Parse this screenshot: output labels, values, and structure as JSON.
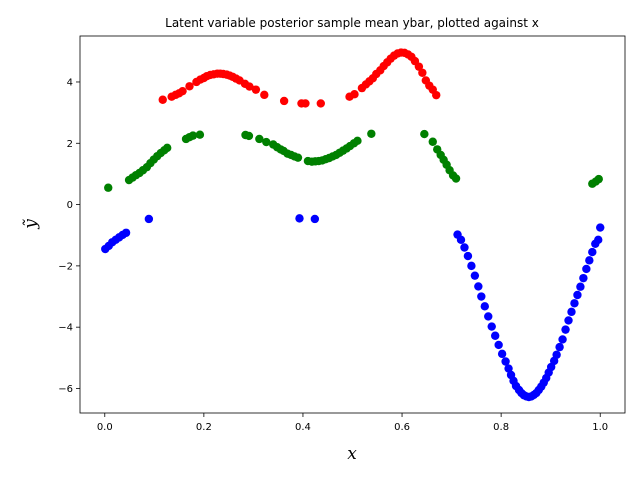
{
  "chart_data": {
    "type": "scatter",
    "title": "Latent variable posterior sample mean ybar, plotted against x",
    "xlabel": "x",
    "ylabel": "ỹ",
    "xlim": [
      -0.05,
      1.05
    ],
    "ylim": [
      -6.8,
      5.5
    ],
    "xticks": [
      0.0,
      0.2,
      0.4,
      0.6,
      0.8,
      1.0
    ],
    "xtick_labels": [
      "0.0",
      "0.2",
      "0.4",
      "0.6",
      "0.8",
      "1.0"
    ],
    "yticks": [
      -6,
      -4,
      -2,
      0,
      2,
      4
    ],
    "ytick_labels": [
      "−6",
      "−4",
      "−2",
      "0",
      "2",
      "4"
    ],
    "grid": false,
    "legend": "none",
    "series": [
      {
        "color": "#ff0000",
        "points": [
          [
            0.117,
            3.42
          ],
          [
            0.135,
            3.52
          ],
          [
            0.143,
            3.58
          ],
          [
            0.15,
            3.63
          ],
          [
            0.157,
            3.7
          ],
          [
            0.171,
            3.86
          ],
          [
            0.185,
            4.0
          ],
          [
            0.193,
            4.08
          ],
          [
            0.2,
            4.13
          ],
          [
            0.206,
            4.19
          ],
          [
            0.213,
            4.23
          ],
          [
            0.22,
            4.25
          ],
          [
            0.227,
            4.27
          ],
          [
            0.233,
            4.27
          ],
          [
            0.239,
            4.26
          ],
          [
            0.246,
            4.24
          ],
          [
            0.252,
            4.21
          ],
          [
            0.258,
            4.17
          ],
          [
            0.265,
            4.11
          ],
          [
            0.272,
            4.05
          ],
          [
            0.283,
            3.94
          ],
          [
            0.292,
            3.85
          ],
          [
            0.305,
            3.75
          ],
          [
            0.322,
            3.58
          ],
          [
            0.362,
            3.38
          ],
          [
            0.397,
            3.3
          ],
          [
            0.405,
            3.3
          ],
          [
            0.436,
            3.3
          ],
          [
            0.494,
            3.52
          ],
          [
            0.504,
            3.6
          ],
          [
            0.519,
            3.8
          ],
          [
            0.527,
            3.92
          ],
          [
            0.534,
            4.02
          ],
          [
            0.541,
            4.12
          ],
          [
            0.548,
            4.26
          ],
          [
            0.556,
            4.38
          ],
          [
            0.563,
            4.52
          ],
          [
            0.57,
            4.64
          ],
          [
            0.577,
            4.76
          ],
          [
            0.584,
            4.86
          ],
          [
            0.591,
            4.93
          ],
          [
            0.598,
            4.96
          ],
          [
            0.605,
            4.95
          ],
          [
            0.612,
            4.9
          ],
          [
            0.619,
            4.82
          ],
          [
            0.626,
            4.68
          ],
          [
            0.634,
            4.5
          ],
          [
            0.641,
            4.3
          ],
          [
            0.648,
            4.05
          ],
          [
            0.655,
            3.88
          ],
          [
            0.662,
            3.75
          ],
          [
            0.669,
            3.57
          ]
        ]
      },
      {
        "color": "#008000",
        "points": [
          [
            0.007,
            0.55
          ],
          [
            0.049,
            0.8
          ],
          [
            0.056,
            0.88
          ],
          [
            0.063,
            0.96
          ],
          [
            0.07,
            1.03
          ],
          [
            0.077,
            1.12
          ],
          [
            0.085,
            1.22
          ],
          [
            0.092,
            1.35
          ],
          [
            0.099,
            1.47
          ],
          [
            0.106,
            1.58
          ],
          [
            0.113,
            1.68
          ],
          [
            0.12,
            1.77
          ],
          [
            0.126,
            1.85
          ],
          [
            0.164,
            2.14
          ],
          [
            0.171,
            2.2
          ],
          [
            0.178,
            2.25
          ],
          [
            0.192,
            2.28
          ],
          [
            0.284,
            2.27
          ],
          [
            0.291,
            2.24
          ],
          [
            0.312,
            2.14
          ],
          [
            0.326,
            2.04
          ],
          [
            0.34,
            1.96
          ],
          [
            0.348,
            1.87
          ],
          [
            0.355,
            1.8
          ],
          [
            0.361,
            1.75
          ],
          [
            0.369,
            1.66
          ],
          [
            0.376,
            1.62
          ],
          [
            0.383,
            1.57
          ],
          [
            0.39,
            1.53
          ],
          [
            0.41,
            1.42
          ],
          [
            0.418,
            1.4
          ],
          [
            0.425,
            1.41
          ],
          [
            0.432,
            1.42
          ],
          [
            0.439,
            1.44
          ],
          [
            0.446,
            1.48
          ],
          [
            0.453,
            1.52
          ],
          [
            0.46,
            1.57
          ],
          [
            0.467,
            1.62
          ],
          [
            0.474,
            1.69
          ],
          [
            0.481,
            1.76
          ],
          [
            0.488,
            1.83
          ],
          [
            0.495,
            1.91
          ],
          [
            0.503,
            2.0
          ],
          [
            0.51,
            2.08
          ],
          [
            0.538,
            2.31
          ],
          [
            0.645,
            2.3
          ],
          [
            0.662,
            2.05
          ],
          [
            0.671,
            1.8
          ],
          [
            0.678,
            1.62
          ],
          [
            0.684,
            1.46
          ],
          [
            0.69,
            1.3
          ],
          [
            0.696,
            1.12
          ],
          [
            0.703,
            0.95
          ],
          [
            0.709,
            0.85
          ],
          [
            0.984,
            0.68
          ],
          [
            0.991,
            0.75
          ],
          [
            0.997,
            0.83
          ]
        ]
      },
      {
        "color": "#0000ff",
        "points": [
          [
            0.001,
            -1.45
          ],
          [
            0.008,
            -1.35
          ],
          [
            0.015,
            -1.23
          ],
          [
            0.022,
            -1.15
          ],
          [
            0.029,
            -1.07
          ],
          [
            0.036,
            -0.99
          ],
          [
            0.043,
            -0.92
          ],
          [
            0.089,
            -0.47
          ],
          [
            0.393,
            -0.45
          ],
          [
            0.424,
            -0.47
          ],
          [
            0.712,
            -0.98
          ],
          [
            0.719,
            -1.15
          ],
          [
            0.726,
            -1.4
          ],
          [
            0.733,
            -1.68
          ],
          [
            0.74,
            -2.0
          ],
          [
            0.747,
            -2.32
          ],
          [
            0.754,
            -2.67
          ],
          [
            0.76,
            -3.0
          ],
          [
            0.767,
            -3.32
          ],
          [
            0.774,
            -3.65
          ],
          [
            0.781,
            -3.98
          ],
          [
            0.788,
            -4.28
          ],
          [
            0.795,
            -4.58
          ],
          [
            0.802,
            -4.87
          ],
          [
            0.809,
            -5.12
          ],
          [
            0.815,
            -5.35
          ],
          [
            0.82,
            -5.56
          ],
          [
            0.825,
            -5.75
          ],
          [
            0.83,
            -5.92
          ],
          [
            0.836,
            -6.05
          ],
          [
            0.841,
            -6.15
          ],
          [
            0.846,
            -6.22
          ],
          [
            0.851,
            -6.26
          ],
          [
            0.856,
            -6.28
          ],
          [
            0.861,
            -6.26
          ],
          [
            0.866,
            -6.21
          ],
          [
            0.871,
            -6.15
          ],
          [
            0.876,
            -6.05
          ],
          [
            0.881,
            -5.94
          ],
          [
            0.886,
            -5.81
          ],
          [
            0.891,
            -5.66
          ],
          [
            0.896,
            -5.48
          ],
          [
            0.901,
            -5.3
          ],
          [
            0.907,
            -5.1
          ],
          [
            0.912,
            -4.9
          ],
          [
            0.918,
            -4.65
          ],
          [
            0.924,
            -4.4
          ],
          [
            0.93,
            -4.08
          ],
          [
            0.936,
            -3.78
          ],
          [
            0.942,
            -3.5
          ],
          [
            0.948,
            -3.22
          ],
          [
            0.954,
            -2.95
          ],
          [
            0.96,
            -2.68
          ],
          [
            0.966,
            -2.4
          ],
          [
            0.972,
            -2.1
          ],
          [
            0.978,
            -1.82
          ],
          [
            0.984,
            -1.55
          ],
          [
            0.99,
            -1.28
          ],
          [
            0.996,
            -1.15
          ],
          [
            1.0,
            -0.75
          ]
        ]
      }
    ]
  }
}
